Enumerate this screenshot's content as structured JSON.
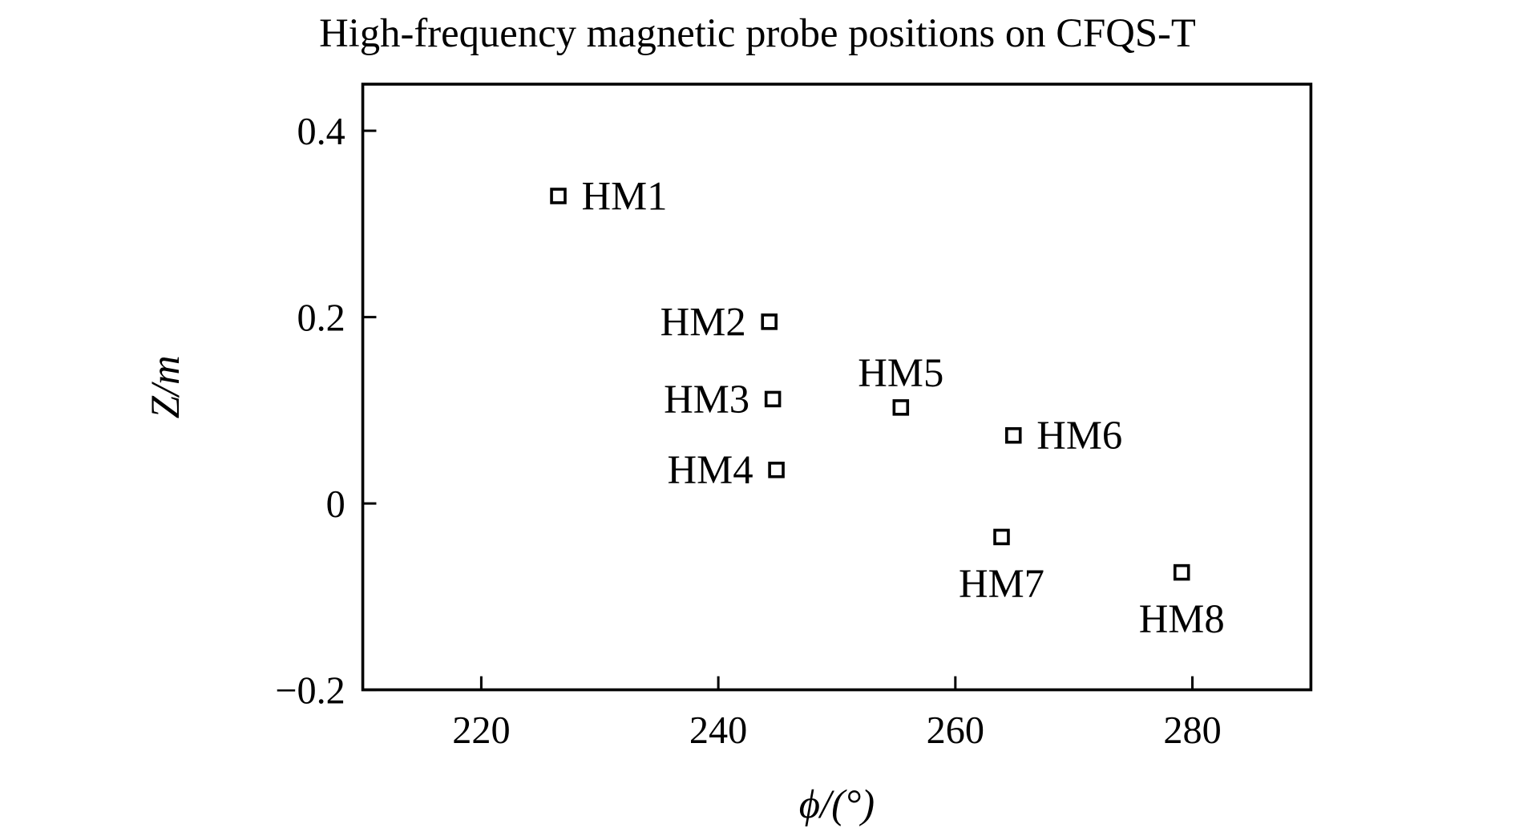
{
  "chart_data": {
    "type": "scatter",
    "title": "High-frequency magnetic probe positions on CFQS-T",
    "xlabel": "ϕ/(°)",
    "ylabel": "Z/m",
    "xlim": [
      210,
      290
    ],
    "ylim": [
      -0.2,
      0.45
    ],
    "xticks": [
      220,
      240,
      260,
      280
    ],
    "xtick_labels": [
      "220",
      "240",
      "260",
      "280"
    ],
    "yticks": [
      0.4,
      0.2,
      0,
      -0.2
    ],
    "ytick_labels": [
      "0.4",
      "0.2",
      "0",
      "−0.2"
    ],
    "grid": false,
    "marker": "open-square",
    "points": [
      {
        "label": "HM1",
        "x": 226.5,
        "y": 0.33,
        "label_pos": "right"
      },
      {
        "label": "HM2",
        "x": 244.3,
        "y": 0.195,
        "label_pos": "left"
      },
      {
        "label": "HM3",
        "x": 244.6,
        "y": 0.112,
        "label_pos": "left"
      },
      {
        "label": "HM4",
        "x": 244.9,
        "y": 0.036,
        "label_pos": "left"
      },
      {
        "label": "HM5",
        "x": 255.4,
        "y": 0.103,
        "label_pos": "above"
      },
      {
        "label": "HM6",
        "x": 264.9,
        "y": 0.073,
        "label_pos": "right"
      },
      {
        "label": "HM7",
        "x": 263.9,
        "y": -0.036,
        "label_pos": "below"
      },
      {
        "label": "HM8",
        "x": 279.1,
        "y": -0.074,
        "label_pos": "below"
      }
    ]
  }
}
